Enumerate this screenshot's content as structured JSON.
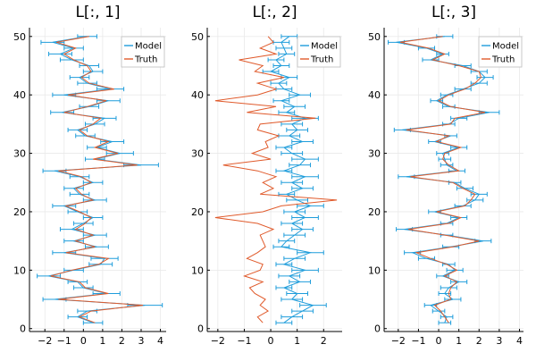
{
  "colors": {
    "model": "#1f9ddb",
    "truth": "#e05a2b",
    "grid": "#e9e9e9",
    "axis": "#000000"
  },
  "chart_data": [
    {
      "type": "line",
      "title": "L[:, 1]",
      "xlim": [
        -2.8,
        4.3
      ],
      "ylim": [
        -0.5,
        51.5
      ],
      "xticks": [
        -2,
        -1,
        0,
        1,
        2,
        3,
        4
      ],
      "yticks": [
        0,
        10,
        20,
        30,
        40,
        50
      ],
      "legend": {
        "position": "top-right",
        "entries": [
          "Model",
          "Truth"
        ]
      },
      "y": [
        1,
        2,
        3,
        4,
        5,
        6,
        7,
        8,
        9,
        10,
        11,
        12,
        13,
        14,
        15,
        16,
        17,
        18,
        19,
        20,
        21,
        22,
        23,
        24,
        25,
        26,
        27,
        28,
        29,
        30,
        31,
        32,
        33,
        34,
        35,
        36,
        37,
        38,
        39,
        40,
        41,
        42,
        43,
        44,
        45,
        46,
        47,
        48,
        49,
        50
      ],
      "series": [
        {
          "name": "Model",
          "errorbars": true,
          "x": [
            0.5,
            -0.3,
            0.2,
            3.2,
            -1.5,
            1.2,
            0.0,
            -0.3,
            -1.8,
            -0.5,
            0.9,
            1.1,
            -1.0,
            0.7,
            -0.5,
            0.6,
            -0.6,
            0.0,
            0.5,
            -0.3,
            -1.0,
            0.6,
            -0.2,
            -0.5,
            0.5,
            -0.2,
            -1.5,
            3.0,
            0.6,
            1.9,
            0.7,
            1.5,
            0.1,
            -0.3,
            0.6,
            1.1,
            -1.1,
            0.3,
            1.3,
            -1.0,
            1.4,
            0.2,
            -0.2,
            0.5,
            0.3,
            -0.6,
            -1.2,
            -0.5,
            -1.6,
            0.2
          ],
          "err": [
            0.5,
            0.5,
            0.5,
            0.9,
            0.6,
            0.7,
            0.5,
            0.5,
            0.6,
            0.5,
            0.6,
            0.7,
            0.6,
            0.6,
            0.5,
            0.6,
            0.6,
            0.5,
            0.5,
            0.5,
            0.6,
            0.6,
            0.5,
            0.5,
            0.5,
            0.5,
            0.6,
            0.9,
            0.5,
            0.7,
            0.5,
            0.6,
            0.5,
            0.5,
            0.5,
            0.6,
            0.6,
            0.5,
            0.6,
            0.6,
            0.7,
            0.5,
            0.5,
            0.5,
            0.5,
            0.6,
            0.6,
            0.5,
            0.6,
            0.5
          ]
        },
        {
          "name": "Truth",
          "errorbars": false,
          "x": [
            0.6,
            -0.2,
            0.4,
            3.1,
            -1.3,
            1.3,
            0.1,
            -0.2,
            -1.7,
            -0.6,
            0.8,
            1.3,
            -0.9,
            0.6,
            -0.4,
            0.5,
            -0.4,
            0.1,
            0.4,
            -0.2,
            -0.9,
            0.5,
            -0.1,
            -0.4,
            0.4,
            -0.1,
            -1.3,
            2.8,
            0.5,
            1.8,
            0.6,
            1.3,
            0.2,
            -0.2,
            0.5,
            0.9,
            -1.0,
            0.2,
            1.2,
            -0.8,
            1.6,
            0.3,
            -0.1,
            0.4,
            0.2,
            -0.5,
            -1.0,
            -0.4,
            -1.4,
            0.3
          ]
        }
      ]
    },
    {
      "type": "line",
      "title": "L[:, 2]",
      "xlim": [
        -2.4,
        2.7
      ],
      "ylim": [
        -0.5,
        51.5
      ],
      "xticks": [
        -2,
        -1,
        0,
        1,
        2
      ],
      "yticks": [
        0,
        10,
        20,
        30,
        40,
        50
      ],
      "legend": {
        "position": "top-right",
        "entries": [
          "Model",
          "Truth"
        ]
      },
      "y": [
        1,
        2,
        3,
        4,
        5,
        6,
        7,
        8,
        9,
        10,
        11,
        12,
        13,
        14,
        15,
        16,
        17,
        18,
        19,
        20,
        21,
        22,
        23,
        24,
        25,
        26,
        27,
        28,
        29,
        30,
        31,
        32,
        33,
        34,
        35,
        36,
        37,
        38,
        39,
        40,
        41,
        42,
        43,
        44,
        45,
        46,
        47,
        48,
        49,
        50
      ],
      "series": [
        {
          "name": "Model",
          "errorbars": true,
          "x": [
            0.5,
            0.8,
            1.2,
            1.6,
            0.8,
            1.0,
            0.5,
            1.1,
            0.7,
            1.3,
            0.5,
            0.9,
            1.5,
            0.4,
            0.6,
            0.9,
            1.2,
            0.8,
            1.3,
            0.9,
            1.5,
            1.0,
            0.6,
            1.2,
            0.8,
            1.3,
            0.5,
            1.1,
            1.3,
            0.8,
            0.5,
            1.2,
            0.7,
            1.0,
            0.8,
            1.3,
            0.6,
            0.9,
            0.4,
            1.1,
            0.5,
            0.3,
            0.7,
            0.0,
            0.4,
            0.2,
            0.6,
            0.5,
            0.4,
            0.7
          ],
          "err": [
            0.3,
            0.4,
            0.4,
            0.5,
            0.4,
            0.4,
            0.3,
            0.4,
            0.4,
            0.5,
            0.3,
            0.4,
            0.5,
            0.3,
            0.3,
            0.4,
            0.4,
            0.4,
            0.5,
            0.4,
            0.5,
            0.4,
            0.3,
            0.4,
            0.4,
            0.5,
            0.3,
            0.4,
            0.5,
            0.4,
            0.3,
            0.4,
            0.4,
            0.4,
            0.4,
            0.5,
            0.3,
            0.4,
            0.3,
            0.4,
            0.3,
            0.3,
            0.3,
            0.3,
            0.3,
            0.3,
            0.3,
            0.3,
            0.3,
            0.3
          ]
        },
        {
          "name": "Truth",
          "errorbars": false,
          "x": [
            -0.3,
            -0.5,
            -0.1,
            -0.4,
            -0.2,
            -0.6,
            -0.8,
            -0.3,
            -1.0,
            -0.4,
            -0.3,
            -0.9,
            -0.5,
            -0.2,
            -0.3,
            -0.4,
            0.1,
            -0.5,
            -2.1,
            -0.3,
            0.4,
            2.5,
            -0.4,
            0.1,
            -0.3,
            0.2,
            -0.5,
            -1.8,
            0.0,
            -0.7,
            -0.1,
            -0.2,
            0.3,
            -0.5,
            -0.4,
            1.7,
            -0.9,
            0.2,
            -2.1,
            -0.5,
            0.2,
            -0.5,
            0.5,
            -0.6,
            -0.3,
            -1.2,
            0.2,
            -0.4,
            0.1,
            -0.1
          ]
        }
      ]
    },
    {
      "type": "line",
      "title": "L[:, 3]",
      "xlim": [
        -2.7,
        4.2
      ],
      "ylim": [
        -0.5,
        51.5
      ],
      "xticks": [
        -2,
        -1,
        0,
        1,
        2,
        3,
        4
      ],
      "yticks": [
        0,
        10,
        20,
        30,
        40,
        50
      ],
      "legend": {
        "position": "top-right",
        "entries": [
          "Model",
          "Truth"
        ]
      },
      "y": [
        1,
        2,
        3,
        4,
        5,
        6,
        7,
        8,
        9,
        10,
        11,
        12,
        13,
        14,
        15,
        16,
        17,
        18,
        19,
        20,
        21,
        22,
        23,
        24,
        25,
        26,
        27,
        28,
        29,
        30,
        31,
        32,
        33,
        34,
        35,
        36,
        37,
        38,
        39,
        40,
        41,
        42,
        43,
        44,
        45,
        46,
        47,
        48,
        49,
        50
      ],
      "series": [
        {
          "name": "Model",
          "errorbars": true,
          "x": [
            0.3,
            0.4,
            0.0,
            -0.4,
            0.7,
            0.3,
            0.5,
            1.0,
            0.2,
            0.8,
            0.5,
            -0.6,
            -1.3,
            0.6,
            2.2,
            0.4,
            -1.7,
            0.4,
            1.0,
            -0.2,
            1.2,
            1.8,
            2.0,
            1.3,
            0.8,
            -1.6,
            0.9,
            0.4,
            0.3,
            0.2,
            1.0,
            -0.2,
            0.6,
            -1.8,
            0.5,
            1.0,
            2.5,
            0.5,
            -0.1,
            0.4,
            1.2,
            2.0,
            2.3,
            2.0,
            1.2,
            -0.4,
            0.2,
            -0.6,
            -2.1,
            0.3
          ],
          "err": [
            0.3,
            0.3,
            0.3,
            0.3,
            0.4,
            0.3,
            0.4,
            0.4,
            0.3,
            0.4,
            0.3,
            0.4,
            0.4,
            0.4,
            0.4,
            0.3,
            0.4,
            0.3,
            0.4,
            0.3,
            0.4,
            0.4,
            0.4,
            0.4,
            0.3,
            0.4,
            0.4,
            0.3,
            0.3,
            0.3,
            0.4,
            0.3,
            0.3,
            0.4,
            0.3,
            0.4,
            0.5,
            0.3,
            0.3,
            0.3,
            0.4,
            0.4,
            0.4,
            0.4,
            0.4,
            0.4,
            0.3,
            0.4,
            0.4,
            0.4
          ]
        },
        {
          "name": "Truth",
          "errorbars": false,
          "x": [
            0.5,
            0.3,
            0.1,
            -0.2,
            0.6,
            0.5,
            0.6,
            0.9,
            0.3,
            0.9,
            0.4,
            -0.4,
            -1.1,
            0.7,
            2.0,
            0.3,
            -1.5,
            0.5,
            1.1,
            -0.1,
            1.3,
            1.6,
            1.8,
            1.2,
            0.7,
            -1.4,
            1.0,
            0.5,
            0.2,
            0.3,
            1.1,
            -0.1,
            0.5,
            -1.6,
            0.6,
            0.8,
            2.3,
            0.6,
            0.0,
            0.5,
            1.3,
            1.8,
            2.1,
            2.0,
            1.0,
            -0.3,
            0.3,
            -0.5,
            -1.9,
            0.2
          ]
        }
      ]
    }
  ]
}
